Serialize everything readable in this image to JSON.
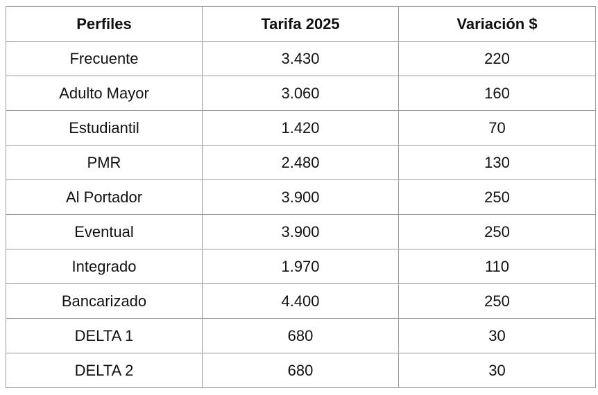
{
  "table": {
    "headers": [
      "Perfiles",
      "Tarifa 2025",
      "Variación $"
    ],
    "rows": [
      [
        "Frecuente",
        "3.430",
        "220"
      ],
      [
        "Adulto Mayor",
        "3.060",
        "160"
      ],
      [
        "Estudiantil",
        "1.420",
        "70"
      ],
      [
        "PMR",
        "2.480",
        "130"
      ],
      [
        "Al Portador",
        "3.900",
        "250"
      ],
      [
        "Eventual",
        "3.900",
        "250"
      ],
      [
        "Integrado",
        "1.970",
        "110"
      ],
      [
        "Bancarizado",
        "4.400",
        "250"
      ],
      [
        "DELTA 1",
        "680",
        "30"
      ],
      [
        "DELTA 2",
        "680",
        "30"
      ]
    ]
  }
}
